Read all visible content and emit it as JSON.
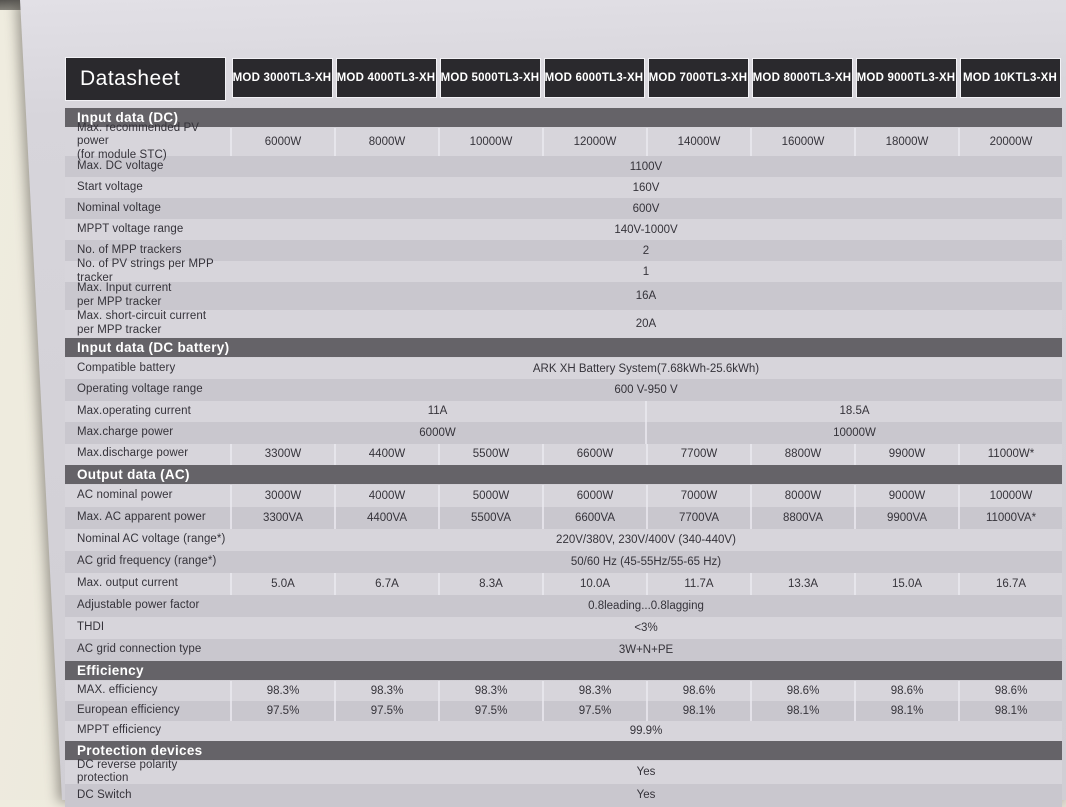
{
  "palette": {
    "header_bg": "#2a292d",
    "section_bar_bg": "#656368",
    "paper": "#d7d5db",
    "paper_top": "#e2e0e6",
    "row_light": "#d7d5db",
    "row_dark": "#c9c7ce"
  },
  "document": {
    "title": "Datasheet",
    "models": [
      "MOD 3000TL3-XH",
      "MOD 4000TL3-XH",
      "MOD 5000TL3-XH",
      "MOD 6000TL3-XH",
      "MOD 7000TL3-XH",
      "MOD 8000TL3-XH",
      "MOD 9000TL3-XH",
      "MOD 10KTL3-XH"
    ],
    "sections": [
      {
        "title": "Input data (DC)",
        "rows": [
          {
            "label": "Max. recommended PV power\n(for module STC)",
            "type": "cols",
            "values": [
              "6000W",
              "8000W",
              "10000W",
              "12000W",
              "14000W",
              "16000W",
              "18000W",
              "20000W"
            ]
          },
          {
            "label": "Max. DC voltage",
            "type": "span",
            "value": "1100V"
          },
          {
            "label": "Start voltage",
            "type": "span",
            "value": "160V"
          },
          {
            "label": "Nominal voltage",
            "type": "span",
            "value": "600V"
          },
          {
            "label": "MPPT voltage range",
            "type": "span",
            "value": "140V-1000V"
          },
          {
            "label": "No. of MPP trackers",
            "type": "span",
            "value": "2"
          },
          {
            "label": "No. of PV strings per MPP tracker",
            "type": "span",
            "value": "1"
          },
          {
            "label": "Max. Input current\nper MPP tracker",
            "type": "span",
            "value": "16A"
          },
          {
            "label": "Max. short-circuit current\nper MPP tracker",
            "type": "span",
            "value": "20A"
          }
        ]
      },
      {
        "title": "Input data (DC battery)",
        "rows": [
          {
            "label": "Compatible battery",
            "type": "span",
            "value": "ARK XH Battery System(7.68kWh-25.6kWh)"
          },
          {
            "label": "Operating voltage range",
            "type": "span",
            "value": "600 V-950 V"
          },
          {
            "label": "Max.operating current",
            "type": "half",
            "values": [
              "11A",
              "18.5A"
            ]
          },
          {
            "label": "Max.charge power",
            "type": "half",
            "values": [
              "6000W",
              "10000W"
            ]
          },
          {
            "label": "Max.discharge power",
            "type": "cols",
            "values": [
              "3300W",
              "4400W",
              "5500W",
              "6600W",
              "7700W",
              "8800W",
              "9900W",
              "11000W*"
            ]
          }
        ]
      },
      {
        "title": "Output data (AC)",
        "rows": [
          {
            "label": "AC nominal power",
            "type": "cols",
            "values": [
              "3000W",
              "4000W",
              "5000W",
              "6000W",
              "7000W",
              "8000W",
              "9000W",
              "10000W"
            ]
          },
          {
            "label": "Max. AC apparent power",
            "type": "cols",
            "values": [
              "3300VA",
              "4400VA",
              "5500VA",
              "6600VA",
              "7700VA",
              "8800VA",
              "9900VA",
              "11000VA*"
            ]
          },
          {
            "label": "Nominal AC voltage (range*)",
            "type": "span",
            "value": "220V/380V, 230V/400V  (340-440V)"
          },
          {
            "label": "AC grid frequency (range*)",
            "type": "span",
            "value": "50/60 Hz (45-55Hz/55-65 Hz)"
          },
          {
            "label": "Max. output current",
            "type": "cols",
            "values": [
              "5.0A",
              "6.7A",
              "8.3A",
              "10.0A",
              "11.7A",
              "13.3A",
              "15.0A",
              "16.7A"
            ]
          },
          {
            "label": "Adjustable power factor",
            "type": "span",
            "value": "0.8leading...0.8lagging"
          },
          {
            "label": "THDI",
            "type": "span",
            "value": "<3%"
          },
          {
            "label": "AC grid connection type",
            "type": "span",
            "value": "3W+N+PE"
          }
        ]
      },
      {
        "title": "Efficiency",
        "rows": [
          {
            "label": "MAX. efficiency",
            "type": "cols",
            "values": [
              "98.3%",
              "98.3%",
              "98.3%",
              "98.3%",
              "98.6%",
              "98.6%",
              "98.6%",
              "98.6%"
            ]
          },
          {
            "label": "European efficiency",
            "type": "cols",
            "values": [
              "97.5%",
              "97.5%",
              "97.5%",
              "97.5%",
              "98.1%",
              "98.1%",
              "98.1%",
              "98.1%"
            ]
          },
          {
            "label": "MPPT efficiency",
            "type": "span",
            "value": "99.9%"
          }
        ]
      },
      {
        "title": "Protection devices",
        "rows": [
          {
            "label": "DC reverse polarity protection",
            "type": "span",
            "value": "Yes"
          },
          {
            "label": "DC Switch",
            "type": "span",
            "value": "Yes"
          }
        ]
      }
    ]
  }
}
